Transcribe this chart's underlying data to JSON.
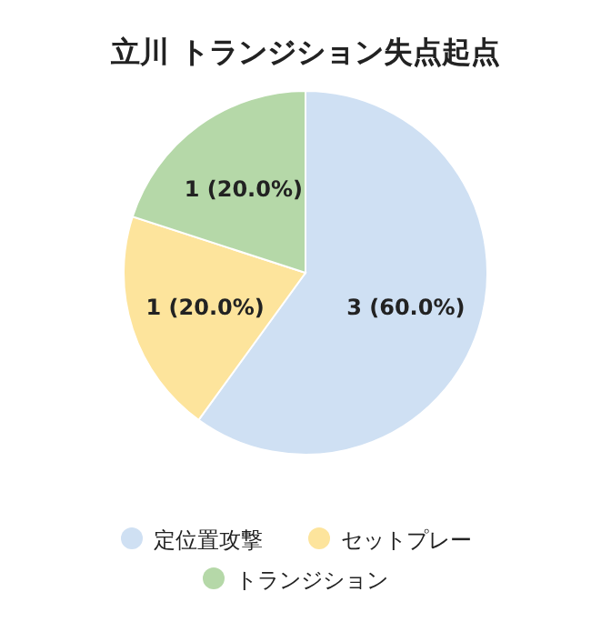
{
  "chart_data": {
    "type": "pie",
    "title": "立川  トランジション失点起点",
    "categories": [
      "定位置攻撃",
      "セットプレー",
      "トランジション"
    ],
    "values": [
      3,
      1,
      1
    ],
    "colors": [
      "#cfe0f3",
      "#fde49c",
      "#b5d8a8"
    ],
    "value_labels": [
      "3 (60.0%)",
      "1 (20.0%)",
      "1 (20.0%)"
    ],
    "legend": "bottom"
  }
}
